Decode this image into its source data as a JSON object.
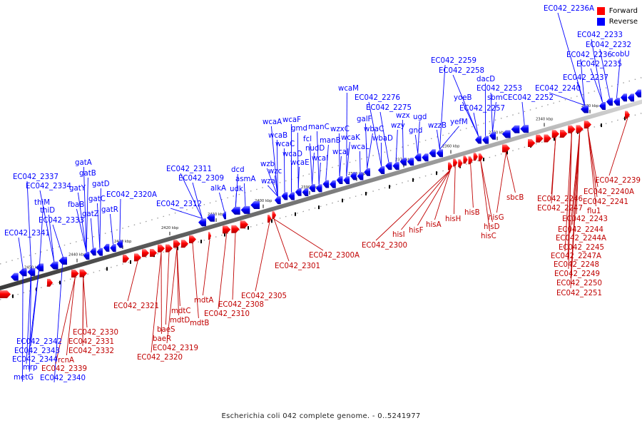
{
  "legend": {
    "forward_label": "Forward",
    "reverse_label": "Reverse",
    "forward_color": "#ff0000",
    "reverse_color": "#0000ff"
  },
  "caption": "Escherichia coli 042 complete genome. - 0..5241977",
  "ruler_ticks": [
    "2450 kbp",
    "2440 kbp",
    "2430 kbp",
    "2420 kbp",
    "2410 kbp",
    "2400 kbp",
    "2390 kbp",
    "2380 kbp",
    "2370 kbp",
    "2360 kbp",
    "2350 kbp",
    "2340 kbp",
    "2330 kbp"
  ],
  "reverse_labels": [
    "EC042_2337",
    "EC042_2334",
    "thiM",
    "thiD",
    "EC042_2333",
    "EC042_2341",
    "gatA",
    "gatB",
    "gatY",
    "gatD",
    "gatC",
    "fbaB",
    "gatZ",
    "gatR",
    "EC042_2320A",
    "EC042_2311",
    "EC042_2309",
    "EC042_2312",
    "alkA",
    "dcd",
    "asmA",
    "udk",
    "wzb",
    "wzc",
    "wza",
    "wcaA",
    "wcaF",
    "wcaB",
    "gmd",
    "wcaC",
    "wcaD",
    "wcaE",
    "fcl",
    "nudD",
    "wcaI",
    "manC",
    "manB",
    "wzxC",
    "wcaJ",
    "wcaK",
    "wcaL",
    "wcaM",
    "EC042_2276",
    "galF",
    "EC042_2275",
    "wbaC",
    "wbaD",
    "wzy",
    "wzx",
    "ugd",
    "gnd",
    "wzzB",
    "EC042_2259",
    "EC042_2258",
    "yoeB",
    "yefM",
    "EC042_2257",
    "dacD",
    "EC042_2253",
    "sbmC",
    "EC042_2252",
    "EC042_2240",
    "EC042_2237",
    "EC042_2235",
    "EC042_2236",
    "EC042_2232",
    "EC042_2233",
    "cobU",
    "EC042_2236A",
    "EC042_2342",
    "EC042_2343",
    "EC042_2344",
    "mrp",
    "metG",
    "EC042_2340"
  ],
  "forward_labels": [
    "EC042_2339",
    "rcnA",
    "EC042_2332",
    "EC042_2331",
    "EC042_2330",
    "EC042_2321",
    "baeR",
    "EC042_2319",
    "EC042_2320",
    "baeS",
    "mdtD",
    "mdtC",
    "mdtB",
    "mdtA",
    "EC042_2310",
    "EC042_2308",
    "EC042_2305",
    "EC042_2301",
    "EC042_2300A",
    "EC042_2300",
    "hisI",
    "hisF",
    "hisA",
    "hisH",
    "hisB",
    "hisG",
    "hisD",
    "hisC",
    "sbcB",
    "EC042_2246",
    "EC042_2247",
    "EC042_2243",
    "EC042_2244",
    "EC042_2244A",
    "EC042_2245",
    "EC042_2247A",
    "EC042_2248",
    "EC042_2249",
    "EC042_2250",
    "EC042_2251",
    "EC042_2239",
    "EC042_2240A",
    "EC042_2241",
    "flu1"
  ]
}
